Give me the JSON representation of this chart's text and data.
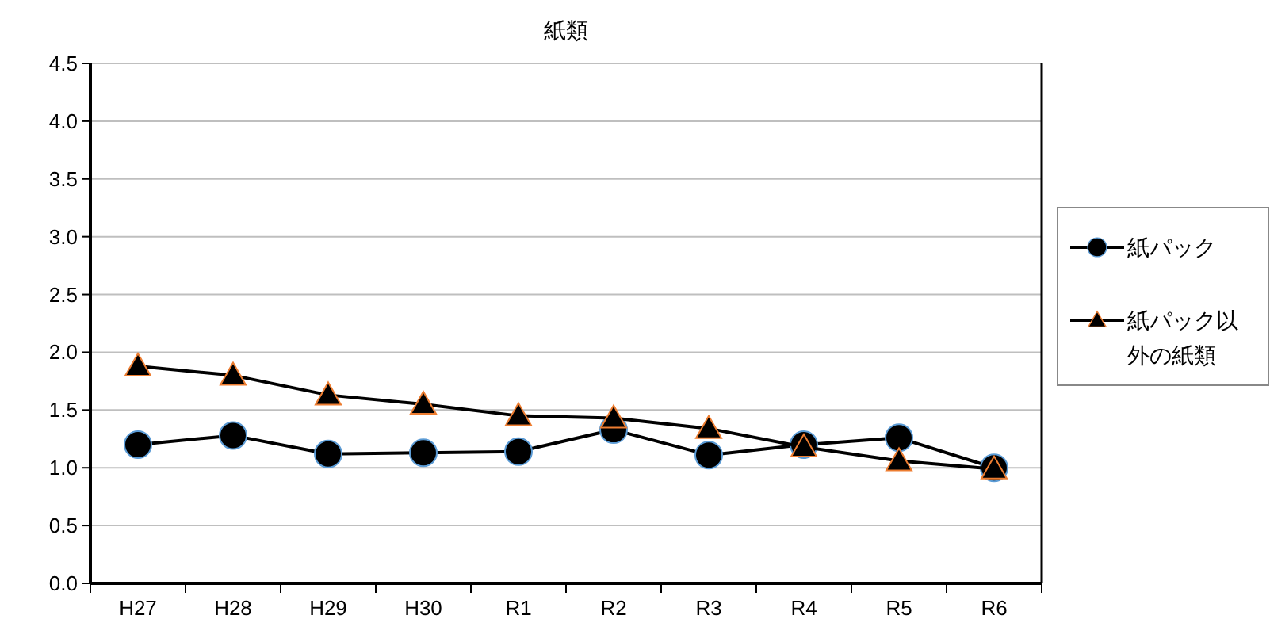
{
  "chart_data": {
    "type": "line",
    "title": "紙類",
    "categories": [
      "H27",
      "H28",
      "H29",
      "H30",
      "R1",
      "R2",
      "R3",
      "R4",
      "R5",
      "R6"
    ],
    "series": [
      {
        "name": "紙パック",
        "color": "#000000",
        "marker": "circle",
        "values": [
          1.2,
          1.28,
          1.12,
          1.13,
          1.14,
          1.33,
          1.11,
          1.2,
          1.26,
          1.0
        ]
      },
      {
        "name": "紙パック以外の紙類",
        "color": "#000000",
        "marker": "triangle",
        "values": [
          1.88,
          1.8,
          1.63,
          1.55,
          1.45,
          1.43,
          1.34,
          1.18,
          1.06,
          0.99
        ]
      }
    ],
    "ylim": [
      0,
      4.5
    ],
    "yticks": [
      {
        "value": 0,
        "label": "0.0"
      },
      {
        "value": 0.5,
        "label": "0.5"
      },
      {
        "value": 1,
        "label": "1.0"
      },
      {
        "value": 1.5,
        "label": "1.5"
      },
      {
        "value": 2,
        "label": "2.0"
      },
      {
        "value": 2.5,
        "label": "2.5"
      },
      {
        "value": 3,
        "label": "3.0"
      },
      {
        "value": 3.5,
        "label": "3.5"
      },
      {
        "value": 4,
        "label": "4.0"
      },
      {
        "value": 4.5,
        "label": "4.5"
      }
    ],
    "grid": "y",
    "legend": "right",
    "line_style": "solid"
  }
}
